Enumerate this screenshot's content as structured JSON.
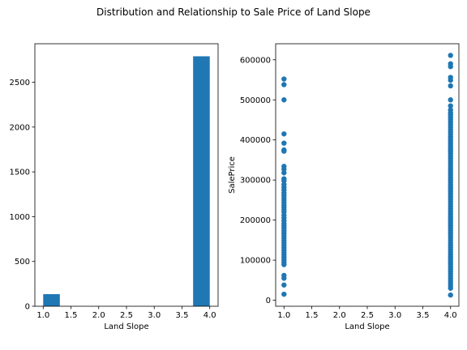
{
  "figure": {
    "title": "Distribution and Relationship to Sale Price of Land Slope"
  },
  "colors": {
    "series": "#1f77b4",
    "axis": "#000000",
    "background": "#ffffff"
  },
  "chart_data": [
    {
      "type": "bar",
      "subtype": "histogram",
      "title": "",
      "xlabel": "Land Slope",
      "ylabel": "",
      "xlim": [
        0.85,
        4.15
      ],
      "ylim": [
        0,
        2930
      ],
      "xticks": [
        1.0,
        1.5,
        2.0,
        2.5,
        3.0,
        3.5,
        4.0
      ],
      "xtick_labels": [
        "1.0",
        "1.5",
        "2.0",
        "2.5",
        "3.0",
        "3.5",
        "4.0"
      ],
      "yticks": [
        0,
        500,
        1000,
        1500,
        2000,
        2500
      ],
      "ytick_labels": [
        "0",
        "500",
        "1000",
        "1500",
        "2000",
        "2500"
      ],
      "bins": [
        {
          "x0": 1.0,
          "x1": 1.3,
          "count": 135
        },
        {
          "x0": 1.3,
          "x1": 1.6,
          "count": 0
        },
        {
          "x0": 1.6,
          "x1": 1.9,
          "count": 0
        },
        {
          "x0": 1.9,
          "x1": 2.2,
          "count": 0
        },
        {
          "x0": 2.2,
          "x1": 2.5,
          "count": 0
        },
        {
          "x0": 2.5,
          "x1": 2.8,
          "count": 0
        },
        {
          "x0": 2.8,
          "x1": 3.1,
          "count": 0
        },
        {
          "x0": 3.1,
          "x1": 3.4,
          "count": 0
        },
        {
          "x0": 3.4,
          "x1": 3.7,
          "count": 0
        },
        {
          "x0": 3.7,
          "x1": 4.0,
          "count": 2790
        }
      ],
      "grid": false
    },
    {
      "type": "scatter",
      "title": "",
      "xlabel": "Land Slope",
      "ylabel": "SalePrice",
      "xlim": [
        0.85,
        4.15
      ],
      "ylim": [
        -15000,
        640000
      ],
      "xticks": [
        1.0,
        1.5,
        2.0,
        2.5,
        3.0,
        3.5,
        4.0
      ],
      "xtick_labels": [
        "1.0",
        "1.5",
        "2.0",
        "2.5",
        "3.0",
        "3.5",
        "4.0"
      ],
      "yticks": [
        0,
        100000,
        200000,
        300000,
        400000,
        500000,
        600000
      ],
      "ytick_labels": [
        "0",
        "100000",
        "200000",
        "300000",
        "400000",
        "500000",
        "600000"
      ],
      "grid": false,
      "series": [
        {
          "x": 1.0,
          "y": [
            552000,
            538000,
            500000,
            415000,
            392000,
            375000,
            372000,
            334000,
            327000,
            318000,
            303000,
            298000,
            289000,
            282000,
            275000,
            268000,
            262000,
            256000,
            250000,
            244000,
            238000,
            232000,
            226000,
            220000,
            212000,
            205000,
            198000,
            191000,
            185000,
            179000,
            173000,
            167000,
            161000,
            155000,
            149000,
            143000,
            137000,
            131000,
            125000,
            119000,
            113000,
            107000,
            101000,
            95000,
            89000,
            62000,
            55000,
            38000,
            15000
          ]
        },
        {
          "x": 4.0,
          "y": [
            611000,
            590000,
            583000,
            556000,
            549000,
            535000,
            500000,
            485000,
            475000,
            468000,
            462000,
            456000,
            450000,
            444000,
            438000,
            432000,
            426000,
            420000,
            414000,
            408000,
            402000,
            396000,
            390000,
            384000,
            378000,
            372000,
            366000,
            360000,
            354000,
            348000,
            342000,
            336000,
            330000,
            324000,
            318000,
            312000,
            306000,
            300000,
            294000,
            288000,
            282000,
            276000,
            270000,
            264000,
            258000,
            252000,
            246000,
            240000,
            234000,
            228000,
            222000,
            216000,
            210000,
            204000,
            198000,
            192000,
            186000,
            180000,
            174000,
            168000,
            162000,
            156000,
            150000,
            144000,
            138000,
            132000,
            126000,
            120000,
            114000,
            108000,
            102000,
            96000,
            90000,
            84000,
            78000,
            72000,
            66000,
            60000,
            54000,
            48000,
            42000,
            36000,
            30000,
            13000
          ]
        }
      ]
    }
  ]
}
